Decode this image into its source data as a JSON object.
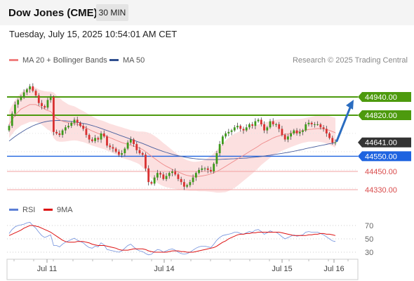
{
  "header": {
    "title": "Dow Jones (CME)",
    "timeframe": "30 MIN",
    "datetime": "Tuesday, July 15, 2025 10:54:01 AM CET"
  },
  "legend": {
    "ma20_label": "MA 20 + Bollinger Bands",
    "ma20_color": "#f08080",
    "ma50_label": "MA 50",
    "ma50_color": "#2f4f8f"
  },
  "credit": "Research © 2025 Trading Central",
  "chart_data": [
    {
      "type": "candlestick",
      "title": "",
      "ylim": [
        44260,
        45050
      ],
      "x_ticks": [
        "Jul 11",
        "Jul 14",
        "Jul 15",
        "Jul 16"
      ],
      "last_price": 44641.0,
      "levels": [
        {
          "value": 44940.0,
          "label": "44940.00",
          "kind": "resistance",
          "color": "#4d9a0e"
        },
        {
          "value": 44820.0,
          "label": "44820.00",
          "kind": "resistance",
          "color": "#4d9a0e"
        },
        {
          "value": 44641.0,
          "label": "44641.00",
          "kind": "last",
          "color": "#333333"
        },
        {
          "value": 44550.0,
          "label": "44550.00",
          "kind": "pivot",
          "color": "#1e63e0"
        },
        {
          "value": 44450.0,
          "label": "44450.00",
          "kind": "support",
          "color": "#e05050"
        },
        {
          "value": 44330.0,
          "label": "44330.00",
          "kind": "support",
          "color": "#e05050"
        }
      ],
      "forecast": {
        "from": 44641,
        "to": 44940,
        "direction": "up"
      },
      "series_close": [
        44750,
        44830,
        44890,
        44920,
        44940,
        44970,
        44990,
        45010,
        44980,
        44950,
        44900,
        44880,
        44870,
        44920,
        44940,
        44710,
        44700,
        44690,
        44720,
        44740,
        44750,
        44770,
        44790,
        44770,
        44750,
        44730,
        44690,
        44660,
        44650,
        44670,
        44660,
        44700,
        44680,
        44620,
        44610,
        44600,
        44580,
        44560,
        44570,
        44600,
        44640,
        44660,
        44630,
        44590,
        44570,
        44560,
        44470,
        44380,
        44370,
        44410,
        44440,
        44430,
        44400,
        44420,
        44440,
        44450,
        44430,
        44400,
        44380,
        44350,
        44360,
        44380,
        44410,
        44440,
        44460,
        44470,
        44470,
        44460,
        44450,
        44500,
        44570,
        44630,
        44680,
        44700,
        44710,
        44720,
        44740,
        44750,
        44730,
        44720,
        44740,
        44760,
        44750,
        44780,
        44790,
        44760,
        44720,
        44740,
        44780,
        44760,
        44760,
        44730,
        44690,
        44660,
        44680,
        44700,
        44720,
        44700,
        44710,
        44720,
        44760,
        44770,
        44760,
        44760,
        44760,
        44740,
        44730,
        44700,
        44670,
        44640,
        44641
      ],
      "ma20": [
        44760,
        44790,
        44820,
        44840,
        44860,
        44870,
        44880,
        44890,
        44890,
        44890,
        44880,
        44870,
        44860,
        44850,
        44845,
        44820,
        44800,
        44790,
        44780,
        44775,
        44770,
        44768,
        44766,
        44760,
        44752,
        44745,
        44736,
        44726,
        44716,
        44708,
        44700,
        44694,
        44688,
        44680,
        44672,
        44664,
        44656,
        44648,
        44640,
        44634,
        44628,
        44622,
        44616,
        44610,
        44604,
        44594,
        44580,
        44565,
        44550,
        44536,
        44522,
        44508,
        44495,
        44484,
        44474,
        44464,
        44455,
        44446,
        44438,
        44430,
        44424,
        44420,
        44418,
        44418,
        44418,
        44420,
        44424,
        44428,
        44434,
        44442,
        44450,
        44460,
        44472,
        44484,
        44496,
        44508,
        44520,
        44532,
        44544,
        44556,
        44568,
        44580,
        44592,
        44604,
        44616,
        44630,
        44640,
        44650,
        44660,
        44670,
        44678,
        44684,
        44690,
        44694,
        44698,
        44702,
        44706,
        44710,
        44714,
        44718,
        44722,
        44726,
        44728,
        44730,
        44732,
        44732,
        44730,
        44726,
        44720,
        44712,
        44705
      ],
      "ma50": [
        44650,
        44665,
        44680,
        44693,
        44706,
        44718,
        44730,
        44740,
        44750,
        44758,
        44765,
        44771,
        44776,
        44780,
        44783,
        44784,
        44785,
        44785,
        44784,
        44783,
        44781,
        44779,
        44776,
        44773,
        44770,
        44766,
        44762,
        44757,
        44752,
        44746,
        44740,
        44733,
        44726,
        44719,
        44712,
        44705,
        44698,
        44690,
        44683,
        44676,
        44669,
        44662,
        44655,
        44648,
        44641,
        44634,
        44626,
        44618,
        44610,
        44602,
        44595,
        44588,
        44581,
        44575,
        44569,
        44563,
        44558,
        44553,
        44549,
        44545,
        44541,
        44538,
        44535,
        44533,
        44531,
        44530,
        44529,
        44528,
        44528,
        44528,
        44528,
        44529,
        44530,
        44531,
        44532,
        44533,
        44534,
        44535,
        44536,
        44537,
        44538,
        44540,
        44542,
        44544,
        44546,
        44548,
        44551,
        44554,
        44557,
        44560,
        44563,
        44566,
        44569,
        44572,
        44575,
        44579,
        44583,
        44587,
        44591,
        44595,
        44600,
        44604,
        44608,
        44612,
        44616,
        44620,
        44624,
        44628,
        44632,
        44636,
        44640
      ],
      "bb_width": [
        90,
        95,
        100,
        105,
        108,
        110,
        112,
        114,
        114,
        112,
        110,
        112,
        118,
        125,
        130,
        150,
        150,
        145,
        135,
        128,
        120,
        115,
        112,
        108,
        105,
        102,
        100,
        98,
        96,
        94,
        92,
        92,
        92,
        92,
        92,
        94,
        96,
        98,
        100,
        100,
        100,
        100,
        102,
        104,
        108,
        118,
        130,
        140,
        146,
        148,
        148,
        146,
        142,
        138,
        132,
        126,
        120,
        114,
        108,
        104,
        100,
        98,
        96,
        96,
        98,
        100,
        104,
        110,
        118,
        128,
        140,
        150,
        160,
        170,
        175,
        178,
        178,
        176,
        172,
        168,
        164,
        160,
        156,
        150,
        144,
        138,
        132,
        126,
        120,
        116,
        112,
        108,
        104,
        100,
        96,
        92,
        88,
        85,
        82,
        80,
        80,
        80,
        82,
        84,
        86,
        88,
        90,
        92,
        94,
        96,
        98
      ]
    },
    {
      "type": "line",
      "title": "",
      "legend": [
        {
          "name": "RSI",
          "color": "#5b7fd6"
        },
        {
          "name": "9MA",
          "color": "#dd1111"
        }
      ],
      "ylim": [
        20,
        80
      ],
      "y_ticks": [
        70,
        50,
        30
      ],
      "x_ticks": [
        "Jul 11",
        "Jul 14",
        "Jul 15",
        "Jul 16"
      ],
      "rsi": [
        58,
        64,
        68,
        70,
        71,
        72,
        74,
        75,
        70,
        66,
        60,
        55,
        52,
        54,
        56,
        40,
        40,
        38,
        42,
        45,
        47,
        49,
        51,
        48,
        46,
        44,
        40,
        37,
        36,
        39,
        38,
        44,
        41,
        34,
        33,
        32,
        31,
        30,
        32,
        36,
        40,
        42,
        38,
        34,
        32,
        31,
        28,
        26,
        27,
        31,
        34,
        33,
        30,
        32,
        34,
        35,
        33,
        30,
        28,
        27,
        28,
        30,
        33,
        36,
        38,
        39,
        39,
        38,
        37,
        42,
        48,
        52,
        55,
        56,
        57,
        58,
        60,
        60,
        58,
        57,
        59,
        61,
        60,
        63,
        64,
        61,
        57,
        59,
        62,
        60,
        60,
        57,
        53,
        50,
        52,
        54,
        56,
        54,
        55,
        56,
        60,
        61,
        60,
        60,
        60,
        58,
        56,
        53,
        50,
        47,
        46
      ],
      "ma9": [
        55,
        57,
        59,
        61,
        63,
        66,
        68,
        70,
        70,
        69,
        68,
        66,
        64,
        62,
        60,
        57,
        54,
        51,
        48,
        46,
        45,
        45,
        45,
        46,
        46,
        46,
        45,
        44,
        42,
        41,
        40,
        40,
        40,
        39,
        38,
        37,
        36,
        34,
        33,
        33,
        33,
        34,
        35,
        35,
        35,
        35,
        34,
        32,
        31,
        30,
        30,
        30,
        30,
        30,
        31,
        32,
        32,
        32,
        31,
        31,
        30,
        30,
        30,
        31,
        32,
        33,
        34,
        35,
        36,
        37,
        39,
        42,
        45,
        47,
        50,
        52,
        54,
        56,
        57,
        57,
        58,
        58,
        59,
        59,
        60,
        60,
        60,
        60,
        60,
        60,
        60,
        60,
        59,
        58,
        57,
        56,
        55,
        55,
        55,
        55,
        55,
        56,
        56,
        57,
        57,
        58,
        58,
        57,
        57,
        56,
        55
      ]
    }
  ]
}
